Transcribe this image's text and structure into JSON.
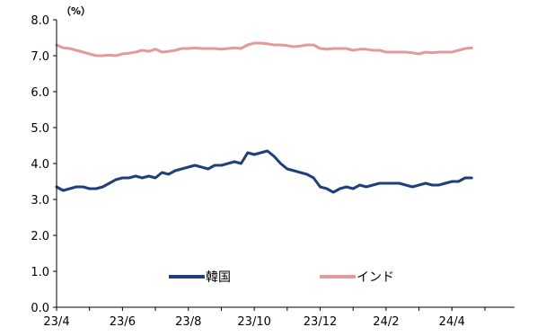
{
  "chart_data": {
    "type": "line",
    "title": "",
    "xlabel": "",
    "ylabel": "",
    "unit": "（%）",
    "ylim": [
      0,
      8
    ],
    "yticks": [
      "0.0",
      "1.0",
      "2.0",
      "3.0",
      "4.0",
      "5.0",
      "6.0",
      "7.0",
      "8.0"
    ],
    "xlim": [
      0,
      13.9
    ],
    "xticks": [
      {
        "label": "23/4",
        "x": 0
      },
      {
        "label": "23/6",
        "x": 2
      },
      {
        "label": "23/8",
        "x": 4
      },
      {
        "label": "23/10",
        "x": 6
      },
      {
        "label": "23/12",
        "x": 8
      },
      {
        "label": "24/2",
        "x": 10
      },
      {
        "label": "24/4",
        "x": 12
      }
    ],
    "legend_position": "bottom-center",
    "grid": false,
    "series": [
      {
        "name": "韓国",
        "color": "#1f3f7a",
        "x": [
          0,
          0.2,
          0.4,
          0.6,
          0.8,
          1.0,
          1.2,
          1.4,
          1.6,
          1.8,
          2.0,
          2.2,
          2.4,
          2.6,
          2.8,
          3.0,
          3.2,
          3.4,
          3.6,
          3.8,
          4.0,
          4.2,
          4.4,
          4.6,
          4.8,
          5.0,
          5.2,
          5.4,
          5.6,
          5.8,
          6.0,
          6.2,
          6.4,
          6.6,
          6.8,
          7.0,
          7.2,
          7.4,
          7.6,
          7.8,
          8.0,
          8.2,
          8.4,
          8.6,
          8.8,
          9.0,
          9.2,
          9.4,
          9.6,
          9.8,
          10.0,
          10.2,
          10.4,
          10.6,
          10.8,
          11.0,
          11.2,
          11.4,
          11.6,
          11.8,
          12.0,
          12.2,
          12.4,
          12.6
        ],
        "values": [
          3.35,
          3.25,
          3.3,
          3.35,
          3.35,
          3.3,
          3.3,
          3.35,
          3.45,
          3.55,
          3.6,
          3.6,
          3.65,
          3.6,
          3.65,
          3.6,
          3.75,
          3.7,
          3.8,
          3.85,
          3.9,
          3.95,
          3.9,
          3.85,
          3.95,
          3.95,
          4.0,
          4.05,
          4.0,
          4.3,
          4.25,
          4.3,
          4.35,
          4.2,
          4.0,
          3.85,
          3.8,
          3.75,
          3.7,
          3.6,
          3.35,
          3.3,
          3.2,
          3.3,
          3.35,
          3.3,
          3.4,
          3.35,
          3.4,
          3.45,
          3.45,
          3.45,
          3.45,
          3.4,
          3.35,
          3.4,
          3.45,
          3.4,
          3.4,
          3.45,
          3.5,
          3.5,
          3.6,
          3.6
        ]
      },
      {
        "name": "インド",
        "color": "#e39a9a",
        "x": [
          0,
          0.2,
          0.4,
          0.6,
          0.8,
          1.0,
          1.2,
          1.4,
          1.6,
          1.8,
          2.0,
          2.2,
          2.4,
          2.6,
          2.8,
          3.0,
          3.2,
          3.4,
          3.6,
          3.8,
          4.0,
          4.2,
          4.4,
          4.6,
          4.8,
          5.0,
          5.2,
          5.4,
          5.6,
          5.8,
          6.0,
          6.2,
          6.4,
          6.6,
          6.8,
          7.0,
          7.2,
          7.4,
          7.6,
          7.8,
          8.0,
          8.2,
          8.4,
          8.6,
          8.8,
          9.0,
          9.2,
          9.4,
          9.6,
          9.8,
          10.0,
          10.2,
          10.4,
          10.6,
          10.8,
          11.0,
          11.2,
          11.4,
          11.6,
          11.8,
          12.0,
          12.2,
          12.4,
          12.6
        ],
        "values": [
          7.3,
          7.22,
          7.2,
          7.15,
          7.1,
          7.05,
          7.0,
          7.0,
          7.02,
          7.0,
          7.05,
          7.07,
          7.1,
          7.15,
          7.12,
          7.18,
          7.1,
          7.12,
          7.15,
          7.2,
          7.2,
          7.22,
          7.2,
          7.2,
          7.2,
          7.18,
          7.2,
          7.22,
          7.2,
          7.3,
          7.35,
          7.35,
          7.33,
          7.3,
          7.3,
          7.28,
          7.25,
          7.27,
          7.3,
          7.3,
          7.2,
          7.18,
          7.2,
          7.2,
          7.2,
          7.15,
          7.18,
          7.18,
          7.15,
          7.15,
          7.1,
          7.1,
          7.1,
          7.1,
          7.08,
          7.05,
          7.1,
          7.08,
          7.1,
          7.1,
          7.1,
          7.15,
          7.2,
          7.22
        ]
      }
    ]
  }
}
